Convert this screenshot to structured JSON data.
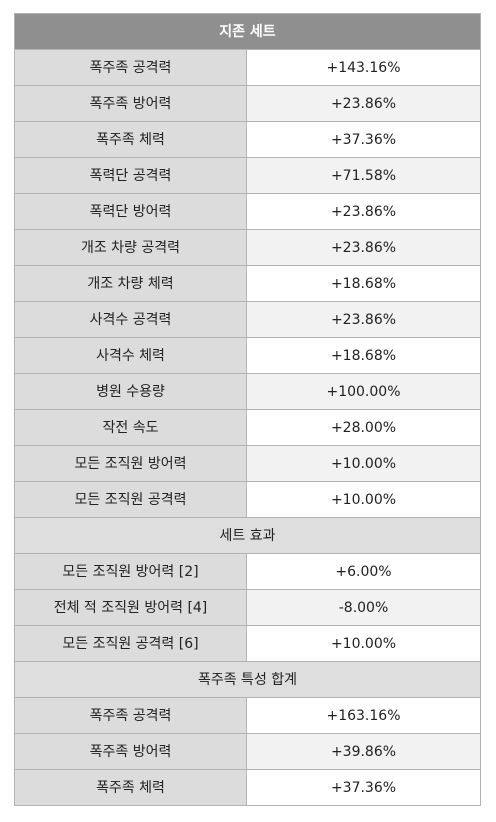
{
  "title": "지존 세트",
  "season_rows": [
    {
      "label": "폭주족 공격력",
      "value": "+143.16%"
    },
    {
      "label": "폭주족 방어력",
      "value": "+23.86%"
    },
    {
      "label": "폭주족 체력",
      "value": "+37.36%"
    },
    {
      "label": "폭력단 공격력",
      "value": "+71.58%"
    },
    {
      "label": "폭력단 방어력",
      "value": "+23.86%"
    },
    {
      "label": "개조 차량 공격력",
      "value": "+23.86%"
    },
    {
      "label": "개조 차량 체력",
      "value": "+18.68%"
    },
    {
      "label": "사격수 공격력",
      "value": "+23.86%"
    },
    {
      "label": "사격수 체력",
      "value": "+18.68%"
    },
    {
      "label": "병원 수용량",
      "value": "+100.00%"
    },
    {
      "label": "작전 속도",
      "value": "+28.00%"
    },
    {
      "label": "모든 조직원 방어력",
      "value": "+10.00%"
    },
    {
      "label": "모든 조직원 공격력",
      "value": "+10.00%"
    }
  ],
  "set_effect": {
    "heading": "세트 효과",
    "rows": [
      {
        "label": "모든 조직원 방어력 [2]",
        "value": "+6.00%"
      },
      {
        "label": "전체 적 조직원 방어력 [4]",
        "value": "-8.00%"
      },
      {
        "label": "모든 조직원 공격력 [6]",
        "value": "+10.00%"
      }
    ]
  },
  "trait_total": {
    "heading": "폭주족 특성 합계",
    "rows": [
      {
        "label": "폭주족 공격력",
        "value": "+163.16%"
      },
      {
        "label": "폭주족 방어력",
        "value": "+39.86%"
      },
      {
        "label": "폭주족 체력",
        "value": "+37.36%"
      }
    ]
  }
}
